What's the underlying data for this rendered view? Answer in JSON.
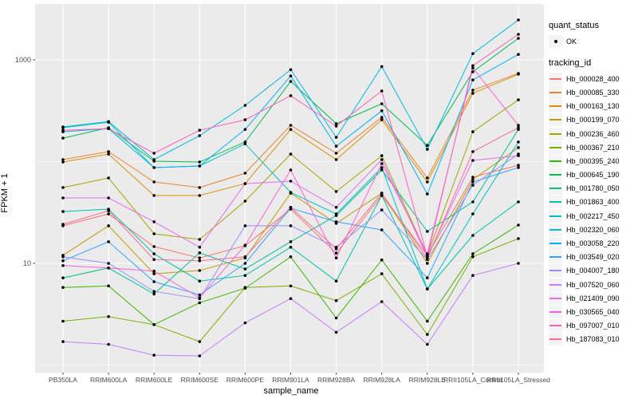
{
  "axes": {
    "y_title": "FPKM + 1",
    "x_title": "sample_name"
  },
  "legend": {
    "quant_title": "quant_status",
    "quant_value": "OK",
    "tracking_title": "tracking_id",
    "point_color": "#000000",
    "key_bg": "#F4F4F4"
  },
  "style": {
    "panel_bg": "#EBEBEB",
    "grid_color": "#FFFFFF",
    "tick_color": "#333333",
    "tick_label_color": "#4D4D4D",
    "point_color": "#000000"
  },
  "chart_data": {
    "type": "line",
    "title": "",
    "xlabel": "sample_name",
    "ylabel": "FPKM + 1",
    "y_scale": "log10",
    "grid": true,
    "legend_position": "right",
    "y_tick_labels": [
      10,
      1000
    ],
    "y_minor_gridlines": [
      1,
      100
    ],
    "ylim": [
      0.84,
      3550
    ],
    "categories": [
      "PB350LA",
      "RRIM600LA",
      "RRIM600LE",
      "RRIM600SE",
      "RRIM600PE",
      "RRIM901LA",
      "RRIM928BA",
      "RRIM928LA",
      "RRIM928LE",
      "RRII105LA_Control",
      "RRII105LA_Stressed"
    ],
    "quant_status": "OK",
    "series": [
      {
        "tracking_id": "Hb_000028_400",
        "color": "#F8766D",
        "values": [
          23.4,
          30.6,
          14.6,
          11.3,
          14.9,
          34.1,
          12.6,
          46.4,
          12,
          70.3,
          92.2
        ]
      },
      {
        "tracking_id": "Hb_000085_330",
        "color": "#EA8331",
        "values": [
          104.6,
          125.3,
          63.1,
          55.6,
          76.9,
          227.4,
          120.8,
          272.3,
          69,
          503.5,
          736.2
        ]
      },
      {
        "tracking_id": "Hb_000163_130",
        "color": "#D89000",
        "values": [
          99.1,
          118.6,
          46.4,
          46.4,
          60.8,
          207,
          104.6,
          257.8,
          63.1,
          468.8,
          723
        ]
      },
      {
        "tracking_id": "Hb_000199_070",
        "color": "#C09B00",
        "values": [
          12,
          23.4,
          7.9,
          8.5,
          11.3,
          48.9,
          24.7,
          48.9,
          10,
          66.6,
          137.4
        ]
      },
      {
        "tracking_id": "Hb_000236_460",
        "color": "#A3A500",
        "values": [
          55.6,
          69,
          19.5,
          17.2,
          40.9,
          118.6,
          50.8,
          114.4,
          12,
          196.6,
          404.6
        ]
      },
      {
        "tracking_id": "Hb_000367_210",
        "color": "#7CAE00",
        "values": [
          2.7,
          3,
          2.5,
          1.7,
          5.8,
          6,
          4.3,
          7.9,
          2,
          11.6,
          17.5
        ]
      },
      {
        "tracking_id": "Hb_000395_240",
        "color": "#39B600",
        "values": [
          5.8,
          6,
          2.5,
          4.1,
          5.7,
          11.6,
          2.9,
          10.8,
          2.7,
          12.4,
          23.8
        ]
      },
      {
        "tracking_id": "Hb_000645_190",
        "color": "#00BB4E",
        "values": [
          170.2,
          215.4,
          100.9,
          99.1,
          155.9,
          614.5,
          235.8,
          370.5,
          144.3,
          762.4,
          1628
        ]
      },
      {
        "tracking_id": "Hb_001780_050",
        "color": "#00C08D",
        "values": [
          7.2,
          9,
          5,
          12.7,
          8.8,
          16.3,
          29.5,
          82.7,
          20.6,
          40.2,
          207
        ]
      },
      {
        "tracking_id": "Hb_001863_400",
        "color": "#00C1A7",
        "values": [
          32.3,
          34.1,
          12.4,
          6.7,
          7.6,
          14.4,
          6.7,
          46.4,
          5.6,
          18.8,
          40.2
        ]
      },
      {
        "tracking_id": "Hb_002217_450",
        "color": "#00BFC4",
        "values": [
          215.4,
          243.4,
          87.4,
          90.6,
          149.7,
          49.8,
          30.6,
          87.4,
          5.6,
          30.6,
          155.9
        ]
      },
      {
        "tracking_id": "Hb_002320_060",
        "color": "#00BADE",
        "values": [
          219.3,
          247.8,
          104.6,
          179.9,
          357.3,
          800.1,
          173.3,
          859.9,
          132.1,
          1152,
          2466
        ]
      },
      {
        "tracking_id": "Hb_003058_220",
        "color": "#00B0F6",
        "values": [
          196.6,
          210.8,
          87.4,
          90.6,
          207,
          694.8,
          141.7,
          315.9,
          48,
          634,
          1131
        ]
      },
      {
        "tracking_id": "Hb_003549_020",
        "color": "#35A2FF",
        "values": [
          10.6,
          16.3,
          6.6,
          4.9,
          10,
          34.8,
          25.6,
          21.3,
          7.2,
          63.1,
          87.4
        ]
      },
      {
        "tracking_id": "Hb_004007_180",
        "color": "#9590FF",
        "values": [
          11.6,
          10,
          5.3,
          4.5,
          23.4,
          23.4,
          14.4,
          33.5,
          10.9,
          58.6,
          118.6
        ]
      },
      {
        "tracking_id": "Hb_007520_060",
        "color": "#C77CFF",
        "values": [
          1.7,
          1.6,
          1.25,
          1.23,
          2.6,
          4.5,
          2.1,
          4.2,
          1.6,
          7.6,
          10
        ]
      },
      {
        "tracking_id": "Hb_021409_090",
        "color": "#E76BF3",
        "values": [
          44,
          44,
          25.6,
          14.4,
          60.8,
          64.3,
          35.5,
          104.6,
          11.6,
          102.7,
          114.4
        ]
      },
      {
        "tracking_id": "Hb_030565_040",
        "color": "#FA62DB",
        "values": [
          9.5,
          9,
          8.4,
          4.6,
          15.1,
          82.7,
          11.3,
          95.6,
          12.4,
          832,
          227.4
        ]
      },
      {
        "tracking_id": "Hb_097007_010",
        "color": "#FF61BB",
        "values": [
          203.3,
          210.8,
          120.8,
          203.3,
          257.8,
          444.3,
          223.3,
          494.5,
          11.6,
          876.8,
          1782
        ]
      },
      {
        "tracking_id": "Hb_187083_010",
        "color": "#FF6A98",
        "values": [
          24.2,
          32.9,
          10.9,
          10.6,
          11.6,
          35.5,
          13.9,
          48.9,
          11.1,
          125.3,
          215.4
        ]
      }
    ]
  }
}
